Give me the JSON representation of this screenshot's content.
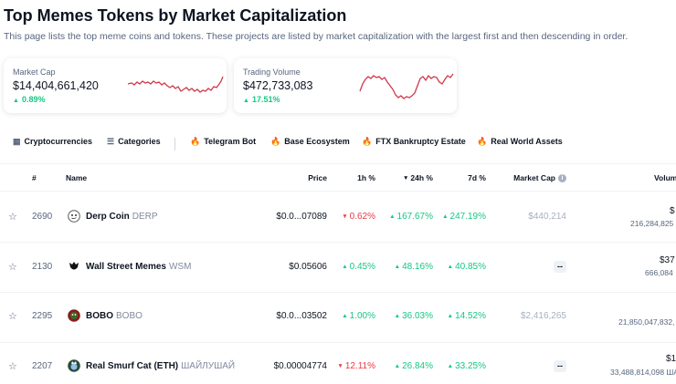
{
  "page": {
    "title": "Top Memes Tokens by Market Capitalization",
    "subtitle": "This page lists the top meme coins and tokens. These projects are listed by market capitalization with the largest first and then descending in order."
  },
  "cards": {
    "market_cap": {
      "label": "Market Cap",
      "value": "$14,404,661,420",
      "change": "0.89%",
      "trend": "up"
    },
    "trading_volume": {
      "label": "Trading Volume",
      "value": "$472,733,083",
      "change": "17.51%",
      "trend": "up"
    }
  },
  "filters": {
    "cryptocurrencies": "Cryptocurrencies",
    "categories": "Categories",
    "tags": [
      "Telegram Bot",
      "Base Ecosystem",
      "FTX Bankruptcy Estate",
      "Real World Assets"
    ]
  },
  "table": {
    "headers": {
      "rank": "#",
      "name": "Name",
      "price": "Price",
      "h1": "1h %",
      "h24": "24h %",
      "d7": "7d %",
      "mcap": "Market Cap",
      "volume": "Volum"
    },
    "rows": [
      {
        "rank": "2690",
        "name": "Derp Coin",
        "symbol": "DERP",
        "price": "$0.0...07089",
        "h1": "0.62%",
        "h1_dir": "down",
        "h24": "167.67%",
        "h24_dir": "up",
        "d7": "247.19%",
        "d7_dir": "up",
        "mcap": "$440,214",
        "vol": "$",
        "vol_sub": "216,284,825"
      },
      {
        "rank": "2130",
        "name": "Wall Street Memes",
        "symbol": "WSM",
        "price": "$0.05606",
        "h1": "0.45%",
        "h1_dir": "up",
        "h24": "48.16%",
        "h24_dir": "up",
        "d7": "40.85%",
        "d7_dir": "up",
        "mcap": "--",
        "vol": "$37",
        "vol_sub": "666,084"
      },
      {
        "rank": "2295",
        "name": "BOBO",
        "symbol": "BOBO",
        "price": "$0.0...03502",
        "h1": "1.00%",
        "h1_dir": "up",
        "h24": "36.03%",
        "h24_dir": "up",
        "d7": "14.52%",
        "d7_dir": "up",
        "mcap": "$2,416,265",
        "vol": "",
        "vol_sub": "21,850,047,832,"
      },
      {
        "rank": "2207",
        "name": "Real Smurf Cat (ETH)",
        "symbol": "ШАЙЛУШАЙ",
        "price": "$0.00004774",
        "h1": "12.11%",
        "h1_dir": "down",
        "h24": "26.84%",
        "h24_dir": "up",
        "d7": "33.25%",
        "d7_dir": "up",
        "mcap": "--",
        "vol": "$1",
        "vol_sub": "33,488,814,098 ШA"
      }
    ]
  },
  "colors": {
    "up": "#16c784",
    "down": "#ea3943",
    "sparkline": "#cf3a4c",
    "fire": "#f68d3d"
  },
  "icons": {
    "star": "star-icon",
    "fire": "fire-icon",
    "info": "info-icon",
    "grid": "grid-icon",
    "list": "list-icon"
  }
}
